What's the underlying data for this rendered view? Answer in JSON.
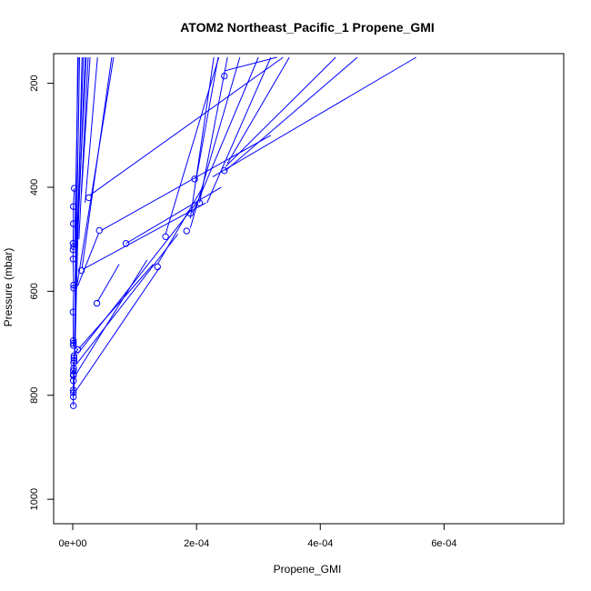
{
  "chart_data": {
    "type": "scatter",
    "title": "ATOM2 Northeast_Pacific_1 Propene_GMI",
    "xlabel": "Propene_GMI",
    "ylabel": "Pressure (mbar)",
    "xlim": [
      -2.5e-05,
      0.0007875
    ],
    "ylim": [
      1040,
      150
    ],
    "y_reversed": true,
    "x_ticks": [
      0,
      0.0002,
      0.0004,
      0.0006
    ],
    "x_tick_labels": [
      "0e+00",
      "2e-04",
      "4e-04",
      "6e-04"
    ],
    "y_ticks": [
      200,
      400,
      600,
      800,
      1000
    ],
    "y_tick_labels": [
      "200",
      "400",
      "600",
      "800",
      "1000"
    ],
    "grid": false,
    "legend": "none",
    "color": "#0000ff",
    "points": [
      {
        "x": 0.000245,
        "y": 186
      },
      {
        "x": 0.000245,
        "y": 368
      },
      {
        "x": 0.000197,
        "y": 384
      },
      {
        "x": 2.5e-06,
        "y": 402
      },
      {
        "x": 2.6e-05,
        "y": 420
      },
      {
        "x": 0.000205,
        "y": 430
      },
      {
        "x": 1e-06,
        "y": 437
      },
      {
        "x": 0.00019,
        "y": 450
      },
      {
        "x": 1e-06,
        "y": 470
      },
      {
        "x": 4.3e-05,
        "y": 483
      },
      {
        "x": 0.000184,
        "y": 484
      },
      {
        "x": 0.00015,
        "y": 495
      },
      {
        "x": 8.6e-05,
        "y": 508
      },
      {
        "x": 5e-07,
        "y": 508
      },
      {
        "x": 1.5e-06,
        "y": 514
      },
      {
        "x": 5e-07,
        "y": 520
      },
      {
        "x": 5e-07,
        "y": 538
      },
      {
        "x": 0.000137,
        "y": 553
      },
      {
        "x": 1.4e-05,
        "y": 560
      },
      {
        "x": 1.5e-06,
        "y": 588
      },
      {
        "x": 1.5e-06,
        "y": 594
      },
      {
        "x": 3.9e-05,
        "y": 623
      },
      {
        "x": 5e-07,
        "y": 640
      },
      {
        "x": 1e-06,
        "y": 695
      },
      {
        "x": 1e-06,
        "y": 700
      },
      {
        "x": 1e-06,
        "y": 704
      },
      {
        "x": 8e-06,
        "y": 712
      },
      {
        "x": 2e-06,
        "y": 724
      },
      {
        "x": 2e-06,
        "y": 728
      },
      {
        "x": 2e-06,
        "y": 733
      },
      {
        "x": 1.5e-06,
        "y": 738
      },
      {
        "x": 1.5e-06,
        "y": 748
      },
      {
        "x": 1e-06,
        "y": 753
      },
      {
        "x": 1e-06,
        "y": 760
      },
      {
        "x": 1e-06,
        "y": 762
      },
      {
        "x": 1e-06,
        "y": 772
      },
      {
        "x": 1e-06,
        "y": 790
      },
      {
        "x": 1e-06,
        "y": 795
      },
      {
        "x": 1e-06,
        "y": 803
      },
      {
        "x": 1e-06,
        "y": 820
      }
    ],
    "segments": [
      [
        [
          0.000246,
          176
        ],
        [
          0.00033,
          150
        ]
      ],
      [
        [
          0.000247,
          360
        ],
        [
          0.000425,
          150
        ]
      ],
      [
        [
          0.000226,
          380
        ],
        [
          0.000555,
          150
        ]
      ],
      [
        [
          0.000247,
          368
        ],
        [
          0.00046,
          150
        ]
      ],
      [
        [
          2.8e-05,
          415
        ],
        [
          0.00034,
          150
        ]
      ],
      [
        [
          0.00025,
          354
        ],
        [
          0.00035,
          150
        ]
      ],
      [
        [
          0.000217,
          430
        ],
        [
          0.00032,
          150
        ]
      ],
      [
        [
          0.000194,
          450
        ],
        [
          0.0003,
          150
        ]
      ],
      [
        [
          0.00019,
          478
        ],
        [
          0.00027,
          150
        ]
      ],
      [
        [
          0.000205,
          430
        ],
        [
          0.00025,
          150
        ]
      ],
      [
        [
          0.000198,
          394
        ],
        [
          0.000235,
          150
        ]
      ],
      [
        [
          0.00019,
          460
        ],
        [
          0.000228,
          150
        ]
      ],
      [
        [
          0.00015,
          490
        ],
        [
          0.000236,
          150
        ]
      ],
      [
        [
          4.6e-05,
          483
        ],
        [
          0.00032,
          300
        ]
      ],
      [
        [
          8.6e-05,
          508
        ],
        [
          0.00024,
          400
        ]
      ],
      [
        [
          1.6e-05,
          558
        ],
        [
          0.000215,
          430
        ]
      ],
      [
        [
          0.000137,
          548
        ],
        [
          0.00021,
          400
        ]
      ],
      [
        [
          4e-05,
          620
        ],
        [
          7.5e-05,
          548
        ]
      ],
      [
        [
          8e-06,
          590
        ],
        [
          4.2e-05,
          488
        ]
      ],
      [
        [
          1e-05,
          710
        ],
        [
          0.00013,
          548
        ]
      ],
      [
        [
          8e-06,
          720
        ],
        [
          0.0002,
          430
        ]
      ],
      [
        [
          6e-06,
          740
        ],
        [
          0.00017,
          490
        ]
      ],
      [
        [
          6e-06,
          790
        ],
        [
          0.00014,
          555
        ]
      ],
      [
        [
          5e-06,
          760
        ],
        [
          0.00012,
          540
        ]
      ],
      [
        [
          2e-05,
          430
        ],
        [
          4e-05,
          150
        ]
      ],
      [
        [
          1.4e-05,
          412
        ],
        [
          2.8e-05,
          150
        ]
      ],
      [
        [
          1.1e-05,
          400
        ],
        [
          2.2e-05,
          150
        ]
      ],
      [
        [
          1e-05,
          500
        ],
        [
          2.5e-05,
          150
        ]
      ],
      [
        [
          6e-06,
          560
        ],
        [
          2e-05,
          150
        ]
      ],
      [
        [
          4e-06,
          700
        ],
        [
          1.5e-05,
          150
        ]
      ],
      [
        [
          3e-06,
          720
        ],
        [
          1.1e-05,
          150
        ]
      ],
      [
        [
          2e-06,
          800
        ],
        [
          8e-06,
          150
        ]
      ],
      [
        [
          3e-06,
          515
        ],
        [
          9e-06,
          150
        ]
      ],
      [
        [
          4e-06,
          600
        ],
        [
          1.7e-05,
          150
        ]
      ],
      [
        [
          6e-06,
          595
        ],
        [
          6.6e-05,
          150
        ]
      ],
      [
        [
          1.5e-05,
          555
        ],
        [
          6.3e-05,
          150
        ]
      ]
    ]
  }
}
